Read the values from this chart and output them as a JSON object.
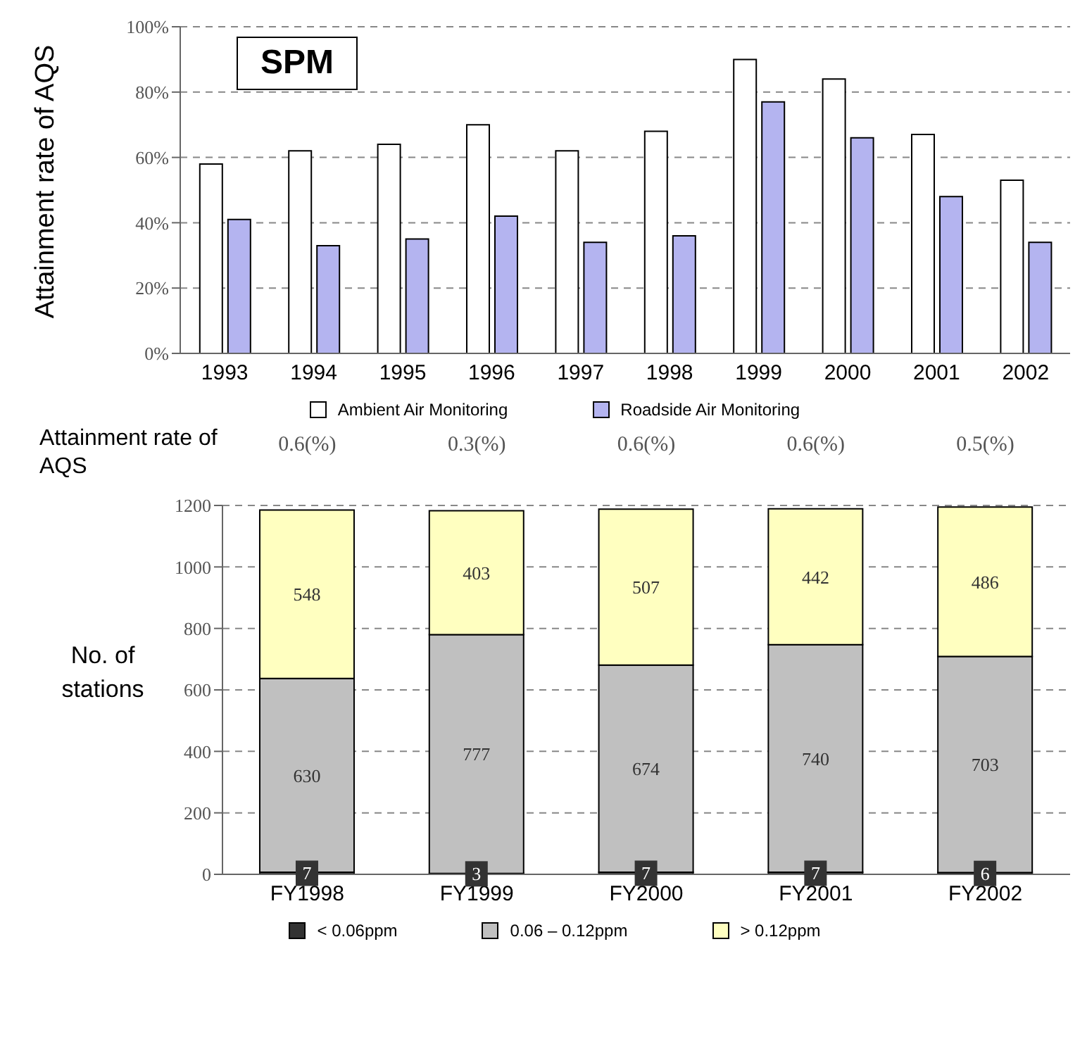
{
  "chart_data": [
    {
      "type": "bar",
      "title": "SPM",
      "ylabel": "Attainment rate of AQS",
      "categories": [
        "1993",
        "1994",
        "1995",
        "1996",
        "1997",
        "1998",
        "1999",
        "2000",
        "2001",
        "2002"
      ],
      "series": [
        {
          "name": "Ambient Air Monitoring",
          "color": "#ffffff",
          "values": [
            58,
            62,
            64,
            70,
            62,
            68,
            90,
            84,
            67,
            53
          ]
        },
        {
          "name": "Roadside Air Monitoring",
          "color": "#b4b4f0",
          "values": [
            41,
            33,
            35,
            42,
            34,
            36,
            77,
            66,
            48,
            34
          ]
        }
      ],
      "ylim": [
        0,
        100
      ],
      "yticks": [
        {
          "value": 0,
          "label": "0%"
        },
        {
          "value": 20,
          "label": "20%"
        },
        {
          "value": 40,
          "label": "40%"
        },
        {
          "value": 60,
          "label": "60%"
        },
        {
          "value": 80,
          "label": "80%"
        },
        {
          "value": 100,
          "label": "100%"
        }
      ],
      "grid": "y",
      "legend": "bottom"
    },
    {
      "type": "bar",
      "stacked": true,
      "ylabel": "No. of stations",
      "annotations": [
        "Attainment rate of AQS",
        "0.6(%)",
        "0.3(%)",
        "0.6(%)",
        "0.6(%)",
        "0.5(%)"
      ],
      "categories": [
        "FY1998",
        "FY1999",
        "FY2000",
        "FY2001",
        "FY2002"
      ],
      "series": [
        {
          "name": "< 0.06ppm",
          "color": "#333333",
          "values": [
            7,
            3,
            7,
            7,
            6
          ]
        },
        {
          "name": "0.06 – 0.12ppm",
          "color": "#c0c0c0",
          "values": [
            630,
            777,
            674,
            740,
            703
          ]
        },
        {
          "name": "> 0.12ppm",
          "color": "#ffffc0",
          "values": [
            548,
            403,
            507,
            442,
            486
          ]
        }
      ],
      "ylim": [
        0,
        1200
      ],
      "yticks": [
        0,
        200,
        400,
        600,
        800,
        1000,
        1200
      ],
      "grid": "y",
      "legend": "bottom",
      "data_labels": true
    }
  ]
}
